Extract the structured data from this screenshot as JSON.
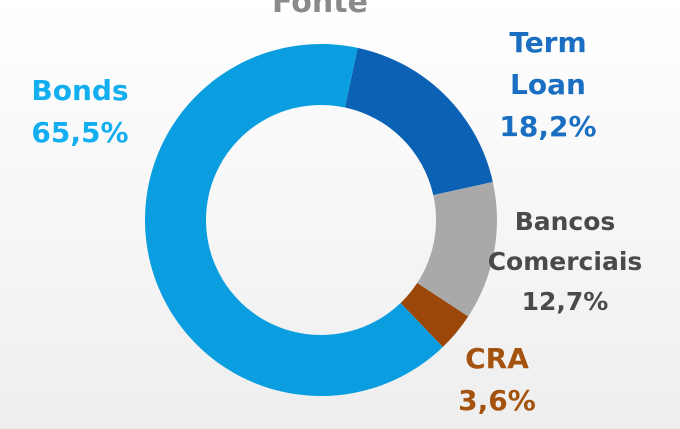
{
  "chart_data": {
    "type": "pie",
    "title": "Fonte",
    "categories": [
      "Term Loan",
      "Bancos Comerciais",
      "CRA",
      "Bonds"
    ],
    "values": [
      18.2,
      12.7,
      3.6,
      65.5
    ],
    "value_labels": [
      "18,2%",
      "12,7%",
      "3,6%",
      "65,5%"
    ],
    "colors": [
      "#0b62b4",
      "#a9a9a9",
      "#9a4709",
      "#0a9ee0"
    ]
  }
}
